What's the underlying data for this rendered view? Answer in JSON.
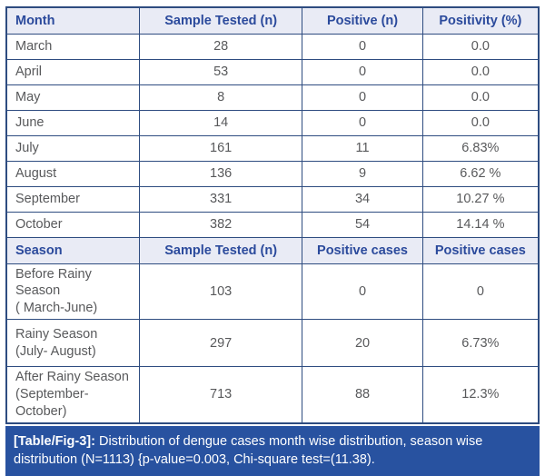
{
  "month_section": {
    "headers": [
      "Month",
      "Sample Tested (n)",
      "Positive (n)",
      "Positivity (%)"
    ],
    "rows": [
      [
        "March",
        "28",
        "0",
        "0.0"
      ],
      [
        "April",
        "53",
        "0",
        "0.0"
      ],
      [
        "May",
        "8",
        "0",
        "0.0"
      ],
      [
        "June",
        "14",
        "0",
        "0.0"
      ],
      [
        "July",
        "161",
        "11",
        "6.83%"
      ],
      [
        "August",
        "136",
        "9",
        "6.62 %"
      ],
      [
        "September",
        "331",
        "34",
        "10.27 %"
      ],
      [
        "October",
        "382",
        "54",
        "14.14 %"
      ]
    ]
  },
  "season_section": {
    "headers": [
      "Season",
      "Sample Tested (n)",
      "Positive cases",
      "Positive cases"
    ],
    "rows": [
      [
        "Before Rainy Season\n( March-June)",
        "103",
        "0",
        "0"
      ],
      [
        "Rainy Season\n(July- August)",
        "297",
        "20",
        "6.73%"
      ],
      [
        "After Rainy Season\n(September- October)",
        "713",
        "88",
        "12.3%"
      ]
    ]
  },
  "caption": {
    "label": "[Table/Fig-3]:",
    "text": "Distribution of dengue cases month wise distribution, season wise distribution (N=1113) {p-value=0.003, Chi-square test=(11.38)."
  },
  "colors": {
    "border": "#2e4c80",
    "header_background": "#e9ebf5",
    "header_text": "#2b4a9c",
    "body_text": "#58595b",
    "caption_background": "#2852a0",
    "caption_text": "#ffffff"
  },
  "chart_data": {
    "type": "table",
    "title": "[Table/Fig-3]: Distribution of dengue cases month wise distribution, season wise distribution (N=1113) {p-value=0.003, Chi-square test=(11.38).",
    "month_table": {
      "columns": [
        "Month",
        "Sample Tested (n)",
        "Positive (n)",
        "Positivity (%)"
      ],
      "rows": [
        [
          "March",
          28,
          0,
          "0.0"
        ],
        [
          "April",
          53,
          0,
          "0.0"
        ],
        [
          "May",
          8,
          0,
          "0.0"
        ],
        [
          "June",
          14,
          0,
          "0.0"
        ],
        [
          "July",
          161,
          11,
          "6.83%"
        ],
        [
          "August",
          136,
          9,
          "6.62 %"
        ],
        [
          "September",
          331,
          34,
          "10.27 %"
        ],
        [
          "October",
          382,
          54,
          "14.14 %"
        ]
      ]
    },
    "season_table": {
      "columns": [
        "Season",
        "Sample Tested (n)",
        "Positive cases",
        "Positive cases"
      ],
      "rows": [
        [
          "Before Rainy Season ( March-June)",
          103,
          0,
          "0"
        ],
        [
          "Rainy Season (July- August)",
          297,
          20,
          "6.73%"
        ],
        [
          "After Rainy Season (September- October)",
          713,
          88,
          "12.3%"
        ]
      ]
    }
  }
}
